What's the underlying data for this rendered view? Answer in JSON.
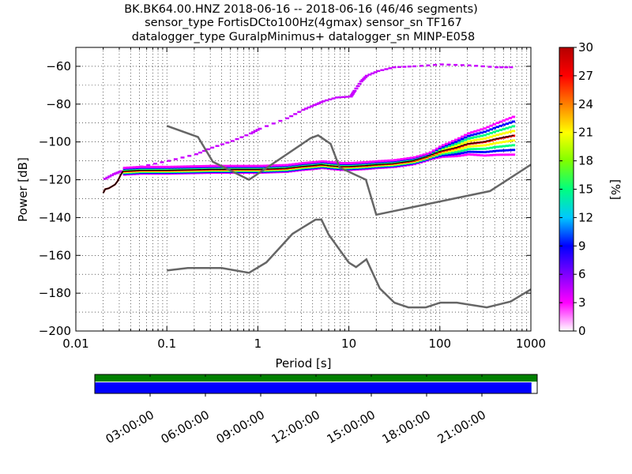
{
  "chart_data": {
    "type": "heatmap",
    "title_lines": [
      "BK.BK64.00.HNZ   2018-06-16 -- 2018-06-16  (46/46 segments)",
      "sensor_type FortisDCto100Hz(4gmax) sensor_sn TF167",
      "datalogger_type GuralpMinimus+ datalogger_sn MINP-E058"
    ],
    "xlabel": "Period [s]",
    "ylabel": "Power [dB]",
    "x_scale": "log",
    "xlim": [
      0.01,
      1000
    ],
    "ylim": [
      -200,
      -50
    ],
    "x_ticks": [
      {
        "value": 0.01,
        "label": "0.01"
      },
      {
        "value": 0.1,
        "label": "0.1"
      },
      {
        "value": 1,
        "label": "1"
      },
      {
        "value": 10,
        "label": "10"
      },
      {
        "value": 100,
        "label": "100"
      },
      {
        "value": 1000,
        "label": "1000"
      }
    ],
    "y_ticks": [
      {
        "value": -60,
        "label": "−60"
      },
      {
        "value": -80,
        "label": "−80"
      },
      {
        "value": -100,
        "label": "−100"
      },
      {
        "value": -120,
        "label": "−120"
      },
      {
        "value": -140,
        "label": "−140"
      },
      {
        "value": -160,
        "label": "−160"
      },
      {
        "value": -180,
        "label": "−180"
      },
      {
        "value": -200,
        "label": "−200"
      }
    ],
    "grid": true,
    "colorbar": {
      "label": "[%]",
      "range": [
        0,
        30
      ],
      "ticks": [
        "0",
        "3",
        "6",
        "9",
        "12",
        "15",
        "18",
        "21",
        "24",
        "27",
        "30"
      ],
      "colors": [
        "#ffffff",
        "#ff00ff",
        "#7f00ff",
        "#0000ff",
        "#00c8ff",
        "#00ff7f",
        "#7fff00",
        "#ffff00",
        "#ff7f00",
        "#ff0000",
        "#b40000"
      ]
    },
    "nhnm": [
      [
        0.1,
        -91.5
      ],
      [
        0.22,
        -97.4
      ],
      [
        0.32,
        -110.5
      ],
      [
        0.8,
        -120
      ],
      [
        3.8,
        -98
      ],
      [
        4.6,
        -96.5
      ],
      [
        6.3,
        -101
      ],
      [
        7.9,
        -113.5
      ],
      [
        15.4,
        -120
      ],
      [
        20,
        -138.5
      ],
      [
        354.8,
        -126
      ],
      [
        1000,
        -112
      ]
    ],
    "nlnm": [
      [
        0.1,
        -168
      ],
      [
        0.17,
        -166.7
      ],
      [
        0.4,
        -166.7
      ],
      [
        0.8,
        -169.2
      ],
      [
        1.24,
        -163.7
      ],
      [
        2.4,
        -148.6
      ],
      [
        4.3,
        -141.1
      ],
      [
        5,
        -141.1
      ],
      [
        6,
        -149
      ],
      [
        10,
        -163.8
      ],
      [
        12,
        -166.2
      ],
      [
        15.6,
        -162.1
      ],
      [
        21.9,
        -177.5
      ],
      [
        31.6,
        -185
      ],
      [
        45,
        -187.5
      ],
      [
        70,
        -187.5
      ],
      [
        101,
        -185
      ],
      [
        154,
        -185
      ],
      [
        328,
        -187.5
      ],
      [
        600,
        -184.4
      ],
      [
        1000,
        -178
      ]
    ],
    "mode_curve": [
      [
        0.02,
        -127
      ],
      [
        0.021,
        -125
      ],
      [
        0.023,
        -124.5
      ],
      [
        0.025,
        -123.5
      ],
      [
        0.027,
        -122.5
      ],
      [
        0.029,
        -120.5
      ],
      [
        0.031,
        -117.5
      ],
      [
        0.033,
        -115.5
      ],
      [
        0.05,
        -115
      ],
      [
        0.1,
        -115
      ],
      [
        0.3,
        -114.5
      ],
      [
        1,
        -114.5
      ],
      [
        2,
        -114
      ],
      [
        3,
        -113
      ],
      [
        4,
        -112.5
      ],
      [
        5,
        -112
      ],
      [
        6,
        -112.5
      ],
      [
        8,
        -113
      ],
      [
        10,
        -113
      ],
      [
        15,
        -112.5
      ],
      [
        20,
        -112
      ],
      [
        30,
        -111.5
      ],
      [
        50,
        -110
      ],
      [
        70,
        -108
      ],
      [
        100,
        -105
      ],
      [
        150,
        -103
      ],
      [
        200,
        -101
      ],
      [
        300,
        -100
      ],
      [
        400,
        -98.5
      ],
      [
        650,
        -96.5
      ]
    ],
    "upper_envelope": [
      [
        0.02,
        -119.5
      ],
      [
        0.025,
        -117
      ],
      [
        0.03,
        -115.5
      ],
      [
        0.05,
        -113
      ],
      [
        0.1,
        -110
      ],
      [
        0.2,
        -106.5
      ],
      [
        0.3,
        -103
      ],
      [
        0.5,
        -99.5
      ],
      [
        0.8,
        -95.5
      ],
      [
        1,
        -93
      ],
      [
        2,
        -87.5
      ],
      [
        3,
        -83
      ],
      [
        4,
        -80.5
      ],
      [
        5,
        -78.5
      ],
      [
        7,
        -76.5
      ],
      [
        10,
        -76
      ],
      [
        11,
        -73
      ],
      [
        13,
        -68
      ],
      [
        15,
        -65
      ],
      [
        20,
        -62.5
      ],
      [
        30,
        -60.5
      ],
      [
        50,
        -60
      ],
      [
        100,
        -59
      ],
      [
        200,
        -59.5
      ],
      [
        400,
        -60.5
      ],
      [
        650,
        -60.5
      ]
    ],
    "time_bar": {
      "coverage": 0.987,
      "gaps": false,
      "labels": [
        "03:00:00",
        "06:00:00",
        "09:00:00",
        "12:00:00",
        "15:00:00",
        "18:00:00",
        "21:00:00"
      ]
    }
  }
}
